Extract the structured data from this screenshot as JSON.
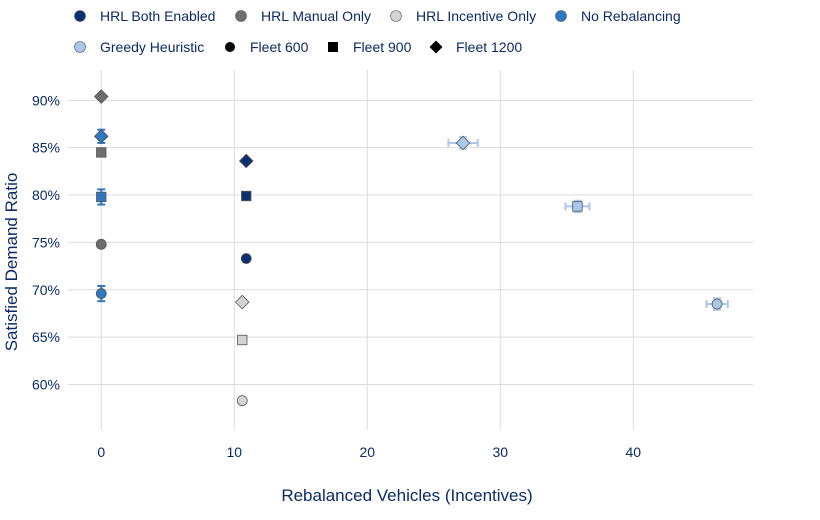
{
  "chart_data": {
    "type": "scatter",
    "title": "",
    "xlabel": "Rebalanced Vehicles (Incentives)",
    "ylabel": "Satisfied Demand Ratio",
    "xlim": [
      -2.5,
      49
    ],
    "ylim": [
      0.552,
      0.932
    ],
    "x_ticks": [
      0,
      10,
      20,
      30,
      40
    ],
    "y_ticks": [
      0.6,
      0.65,
      0.7,
      0.75,
      0.8,
      0.85,
      0.9
    ],
    "y_tick_labels": [
      "60%",
      "65%",
      "70%",
      "75%",
      "80%",
      "85%",
      "90%"
    ],
    "x_tick_labels": [
      "0",
      "10",
      "20",
      "30",
      "40"
    ],
    "grid": true,
    "legend_position": "top",
    "legend": [
      {
        "label": "HRL Both Enabled",
        "color": "#0d2f6e",
        "shape": "circle"
      },
      {
        "label": "HRL Manual Only",
        "color": "#6e6e6e",
        "shape": "circle"
      },
      {
        "label": "HRL Incentive Only",
        "color": "#d3d3d3",
        "shape": "circle"
      },
      {
        "label": "No Rebalancing",
        "color": "#2f77bf",
        "shape": "circle"
      },
      {
        "label": "Greedy Heuristic",
        "color": "#a9c8ec",
        "shape": "circle"
      },
      {
        "label": "Fleet 600",
        "color": "#000000",
        "shape": "circle"
      },
      {
        "label": "Fleet 900",
        "color": "#000000",
        "shape": "square"
      },
      {
        "label": "Fleet 1200",
        "color": "#000000",
        "shape": "diamond"
      }
    ],
    "series": [
      {
        "name": "HRL Both Enabled",
        "color": "#0d2f6e",
        "points": [
          {
            "fleet": "Fleet 600",
            "x": 10.9,
            "y": 0.733
          },
          {
            "fleet": "Fleet 900",
            "x": 10.9,
            "y": 0.799
          },
          {
            "fleet": "Fleet 1200",
            "x": 10.9,
            "y": 0.836
          }
        ]
      },
      {
        "name": "HRL Manual Only",
        "color": "#6e6e6e",
        "points": [
          {
            "fleet": "Fleet 600",
            "x": 0,
            "y": 0.748
          },
          {
            "fleet": "Fleet 900",
            "x": 0,
            "y": 0.845
          },
          {
            "fleet": "Fleet 1200",
            "x": 0,
            "y": 0.904
          }
        ]
      },
      {
        "name": "HRL Incentive Only",
        "color": "#d3d3d3",
        "points": [
          {
            "fleet": "Fleet 600",
            "x": 10.6,
            "y": 0.583
          },
          {
            "fleet": "Fleet 900",
            "x": 10.6,
            "y": 0.647
          },
          {
            "fleet": "Fleet 1200",
            "x": 10.6,
            "y": 0.687
          }
        ]
      },
      {
        "name": "No Rebalancing",
        "color": "#2f77bf",
        "points": [
          {
            "fleet": "Fleet 600",
            "x": 0,
            "y": 0.696,
            "yerr": 0.008
          },
          {
            "fleet": "Fleet 900",
            "x": 0,
            "y": 0.798,
            "yerr": 0.008
          },
          {
            "fleet": "Fleet 1200",
            "x": 0,
            "y": 0.862,
            "yerr": 0.007
          }
        ]
      },
      {
        "name": "Greedy Heuristic",
        "color": "#a9c8ec",
        "points": [
          {
            "fleet": "Fleet 600",
            "x": 46.3,
            "y": 0.685,
            "xerr": 0.8,
            "yerr": 0.006
          },
          {
            "fleet": "Fleet 900",
            "x": 35.8,
            "y": 0.788,
            "xerr": 0.9,
            "yerr": 0.006
          },
          {
            "fleet": "Fleet 1200",
            "x": 27.2,
            "y": 0.855,
            "xerr": 1.1,
            "yerr": 0.006
          }
        ]
      }
    ]
  }
}
